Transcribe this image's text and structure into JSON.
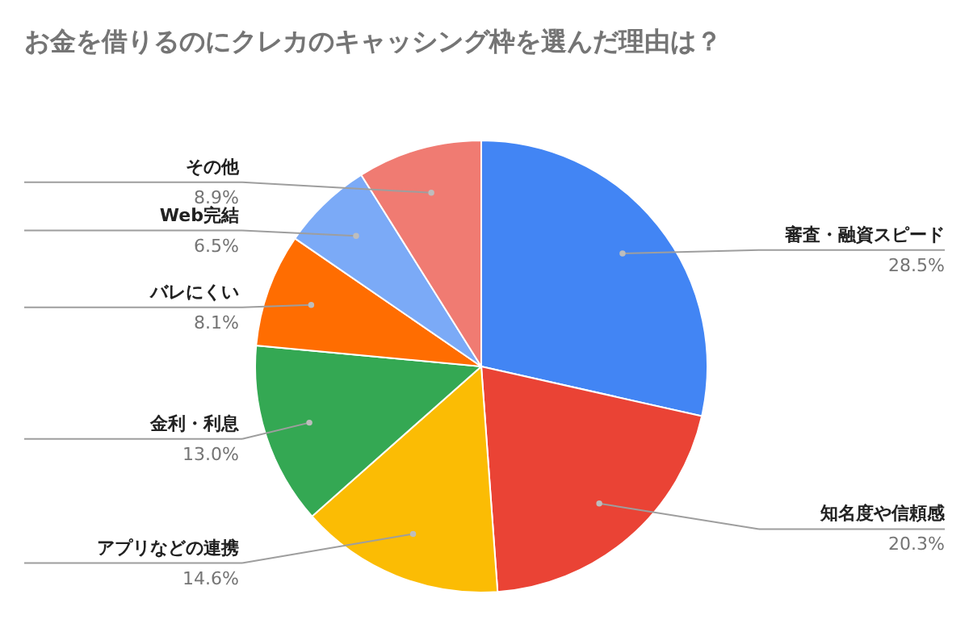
{
  "chart_data": {
    "type": "pie",
    "title": "お金を借りるのにクレカのキャッシング枠を選んだ理由は？",
    "categories": [
      "審査・融資スピード",
      "知名度や信頼感",
      "アプリなどの連携",
      "金利・利息",
      "バレにくい",
      "Web完結",
      "その他"
    ],
    "values": [
      28.5,
      20.3,
      14.6,
      13.0,
      8.1,
      6.5,
      8.9
    ],
    "value_labels": [
      "28.5%",
      "20.3%",
      "14.6%",
      "13.0%",
      "8.1%",
      "6.5%",
      "8.9%"
    ],
    "colors": [
      "#4285f4",
      "#ea4335",
      "#fbbc04",
      "#34a853",
      "#ff6d01",
      "#7baaf7",
      "#f07b72"
    ]
  }
}
